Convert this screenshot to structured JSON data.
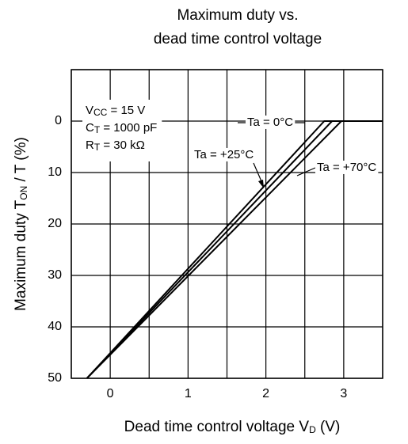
{
  "chart_data": {
    "type": "line",
    "title": [
      "Maximum duty vs.",
      "dead time control voltage"
    ],
    "x_label": {
      "main": "Dead time control voltage V",
      "sub": "D",
      "rest": " (V)"
    },
    "y_label": {
      "main": "Maximum duty T",
      "sub": "ON",
      "rest": " / T (%)"
    },
    "xlim": [
      -0.5,
      3.5
    ],
    "xticks": [
      0,
      1,
      2,
      3
    ],
    "x_minor_grid": [
      -0.5,
      0.5,
      1.5,
      2.5,
      3.5
    ],
    "ylim": [
      50,
      -10
    ],
    "yticks": [
      0,
      10,
      20,
      30,
      40,
      50
    ],
    "y_minor_grid": [
      -10
    ],
    "grid": true,
    "conditions": [
      {
        "main": "V",
        "sub": "CC",
        "rest": " = 15 V"
      },
      {
        "main": "C",
        "sub": "T",
        "rest": " = 1000 pF"
      },
      {
        "main": "R",
        "sub": "T",
        "rest": " = 30 kΩ"
      }
    ],
    "series": [
      {
        "name": "Ta = 0°C",
        "color": "#000000",
        "x": [
          -0.3,
          2.75,
          3.5
        ],
        "values": [
          50,
          0,
          0
        ]
      },
      {
        "name": "Ta = +25°C",
        "color": "#000000",
        "x": [
          -0.3,
          2.85,
          3.5
        ],
        "values": [
          50,
          0,
          0
        ]
      },
      {
        "name": "Ta = +70°C",
        "color": "#000000",
        "x": [
          -0.3,
          2.97,
          3.5
        ],
        "values": [
          50,
          0,
          0
        ]
      }
    ]
  }
}
